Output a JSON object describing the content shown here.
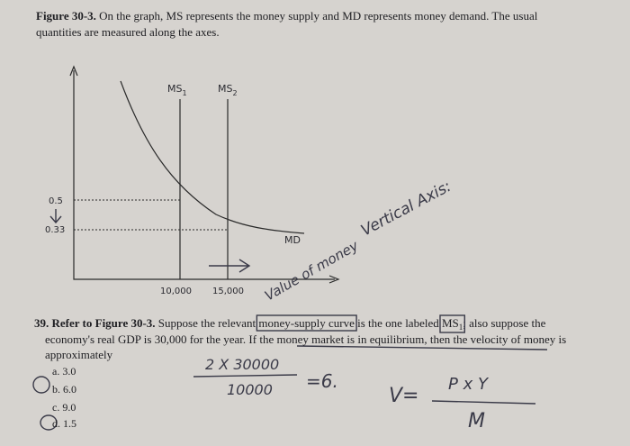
{
  "figure": {
    "label": "Figure 30-3.",
    "caption_1": "On the graph, MS represents the money supply and MD represents money demand. The usual",
    "caption_2": "quantities are measured along the axes."
  },
  "graph": {
    "ms1": {
      "name": "MS",
      "sub": "1"
    },
    "ms2": {
      "name": "MS",
      "sub": "2"
    },
    "md": "MD",
    "y_labels": [
      "0.5",
      "0.33"
    ],
    "x_labels": [
      "10,000",
      "15,000"
    ]
  },
  "question": {
    "number": "39.",
    "lead": "Refer to Figure 30-3.",
    "text_1": "Suppose the relevant",
    "box_1": "money-supply curve",
    "text_2": "is the one labeled",
    "box_2": {
      "name": "MS",
      "sub": "1"
    },
    "text_3": "; also suppose the",
    "line_2": "economy's real GDP is 30,000 for the year. If the money market is in equilibrium, then the velocity of money is",
    "line_3": "approximately",
    "choices": [
      "a. 3.0",
      "b. 6.0",
      "c. 9.0",
      "d. 1.5"
    ]
  },
  "handwriting": {
    "axis_note": "Vertical Axis:",
    "axis_note_2": "Value of money",
    "numerator": "2 X 30000",
    "denominator": "10000",
    "result": "=6.",
    "formula_left": "V=",
    "formula_num": "P x Y",
    "formula_den": "M"
  }
}
